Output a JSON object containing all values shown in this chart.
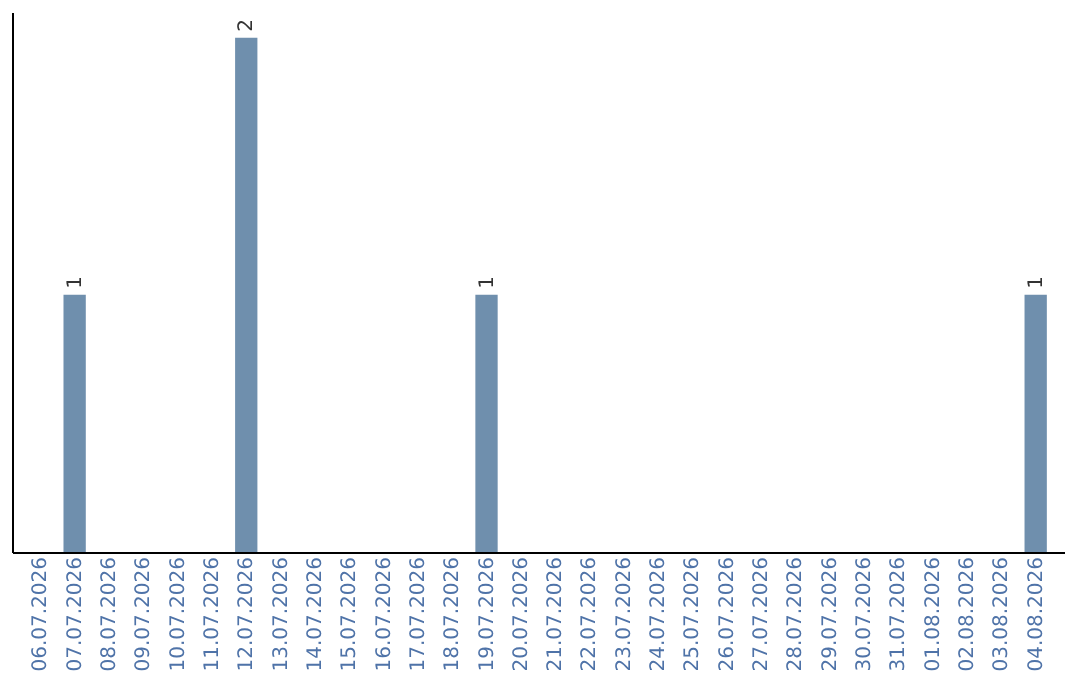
{
  "chart_data": {
    "type": "bar",
    "categories": [
      "06.07.2026",
      "07.07.2026",
      "08.07.2026",
      "09.07.2026",
      "10.07.2026",
      "11.07.2026",
      "12.07.2026",
      "13.07.2026",
      "14.07.2026",
      "15.07.2026",
      "16.07.2026",
      "17.07.2026",
      "18.07.2026",
      "19.07.2026",
      "20.07.2026",
      "21.07.2026",
      "22.07.2026",
      "23.07.2026",
      "24.07.2026",
      "25.07.2026",
      "26.07.2026",
      "27.07.2026",
      "28.07.2026",
      "29.07.2026",
      "30.07.2026",
      "31.07.2026",
      "01.08.2026",
      "02.08.2026",
      "03.08.2026",
      "04.08.2026"
    ],
    "values": [
      0,
      1,
      0,
      0,
      0,
      0,
      2,
      0,
      0,
      0,
      0,
      0,
      0,
      1,
      0,
      0,
      0,
      0,
      0,
      0,
      0,
      0,
      0,
      0,
      0,
      0,
      0,
      0,
      0,
      1
    ],
    "value_labels": [
      null,
      "1",
      null,
      null,
      null,
      null,
      "2",
      null,
      null,
      null,
      null,
      null,
      null,
      "1",
      null,
      null,
      null,
      null,
      null,
      null,
      null,
      null,
      null,
      null,
      null,
      null,
      null,
      null,
      null,
      "1"
    ],
    "color": "#6f8fad",
    "ylim": [
      0,
      2.1
    ],
    "tick_labels": "x",
    "grid": false
  }
}
